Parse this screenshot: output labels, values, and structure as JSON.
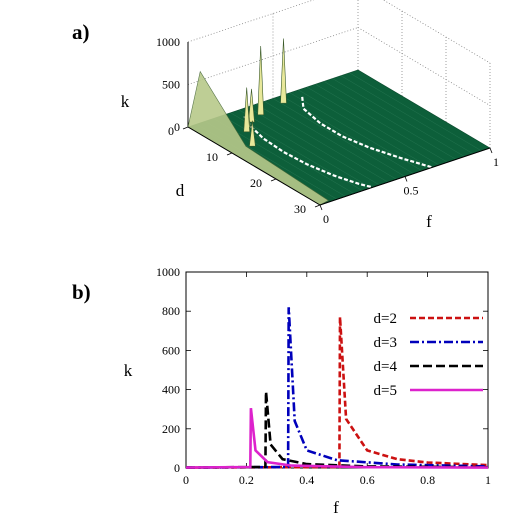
{
  "panels": {
    "a": "a)",
    "b": "b)"
  },
  "chart_data": [
    {
      "type": "surface3d",
      "panel": "a)",
      "xlabel": "f",
      "ylabel": "d",
      "zlabel": "k",
      "x_ticks": [
        "0",
        "0.5",
        "1"
      ],
      "y_ticks": [
        "0",
        "10",
        "20",
        "30"
      ],
      "z_ticks": [
        "0",
        "500",
        "1000"
      ],
      "xlim": [
        0,
        1
      ],
      "ylim": [
        0,
        30
      ],
      "zlim": [
        0,
        1000
      ],
      "ridge_peaks": [
        {
          "d": 2,
          "f": 0.51,
          "k": 760
        },
        {
          "d": 3,
          "f": 0.35,
          "k": 810
        },
        {
          "d": 4,
          "f": 0.27,
          "k": 390
        },
        {
          "d": 5,
          "f": 0.22,
          "k": 300
        },
        {
          "d": 6,
          "f": 0.19,
          "k": 520
        },
        {
          "d": 10,
          "f": 0.12,
          "k": 300
        }
      ],
      "grid": true,
      "surface_color": "#0d5f3a"
    },
    {
      "type": "line",
      "panel": "b)",
      "xlabel": "f",
      "ylabel": "k",
      "xlim": [
        0,
        1
      ],
      "ylim": [
        0,
        1000
      ],
      "x_ticks": [
        "0",
        "0.2",
        "0.4",
        "0.6",
        "0.8",
        "1"
      ],
      "y_ticks": [
        "0",
        "200",
        "400",
        "600",
        "800",
        "1000"
      ],
      "legend_position": "top-right",
      "series": [
        {
          "name": "d=2",
          "color": "#cc1111",
          "dash": "6,3",
          "critical_f": 0.51,
          "peak_k": 770,
          "tail": [
            [
              0.53,
              250
            ],
            [
              0.6,
              90
            ],
            [
              0.7,
              45
            ],
            [
              0.8,
              28
            ],
            [
              1.0,
              15
            ]
          ]
        },
        {
          "name": "d=3",
          "color": "#0000bb",
          "dash": "9,3,2,3",
          "critical_f": 0.34,
          "peak_k": 820,
          "tail": [
            [
              0.36,
              240
            ],
            [
              0.4,
              90
            ],
            [
              0.5,
              40
            ],
            [
              0.7,
              18
            ],
            [
              1.0,
              8
            ]
          ]
        },
        {
          "name": "d=4",
          "color": "#000000",
          "dash": "9,4",
          "critical_f": 0.265,
          "peak_k": 390,
          "tail": [
            [
              0.28,
              120
            ],
            [
              0.32,
              45
            ],
            [
              0.4,
              20
            ],
            [
              0.6,
              8
            ],
            [
              1.0,
              4
            ]
          ]
        },
        {
          "name": "d=5",
          "color": "#dd22cc",
          "dash": "",
          "critical_f": 0.215,
          "peak_k": 305,
          "tail": [
            [
              0.23,
              90
            ],
            [
              0.27,
              30
            ],
            [
              0.35,
              12
            ],
            [
              0.6,
              4
            ],
            [
              1.0,
              2
            ]
          ]
        }
      ]
    }
  ]
}
